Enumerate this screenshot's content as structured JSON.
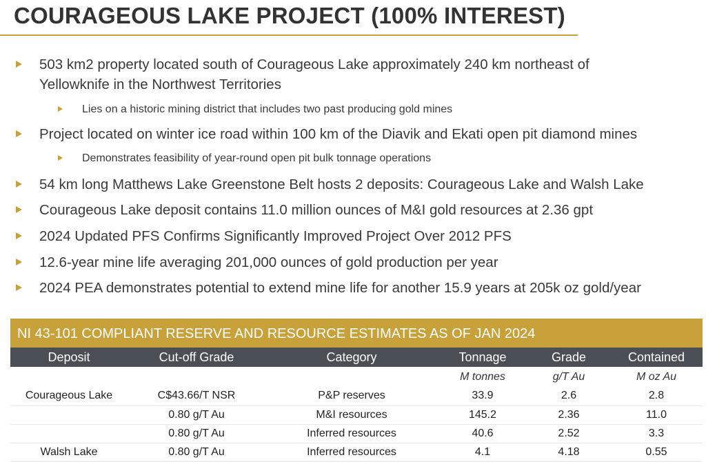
{
  "title": "COURAGEOUS LAKE PROJECT (100% INTEREST)",
  "bullets": [
    {
      "level": 1,
      "lines": [
        "503 km2 property located south of Courageous Lake approximately 240 km northeast of",
        "Yellowknife in the Northwest Territories"
      ]
    },
    {
      "level": 2,
      "lines": [
        "Lies on a historic mining district that includes two past producing gold mines"
      ]
    },
    {
      "level": 1,
      "lines": [
        "Project located on winter ice road within 100 km of the Diavik and Ekati open pit diamond mines"
      ]
    },
    {
      "level": 2,
      "lines": [
        "Demonstrates feasibility of year-round open pit bulk tonnage operations"
      ]
    },
    {
      "level": 1,
      "lines": [
        "54 km long Matthews Lake Greenstone Belt hosts 2 deposits: Courageous Lake and Walsh Lake"
      ]
    },
    {
      "level": 1,
      "lines": [
        "Courageous Lake deposit contains 11.0 million ounces of M&I gold resources at 2.36 gpt"
      ]
    },
    {
      "level": 1,
      "lines": [
        "2024 Updated PFS Confirms Significantly Improved Project Over 2012 PFS"
      ]
    },
    {
      "level": 1,
      "lines": [
        "12.6-year mine life averaging 201,000 ounces of gold production per year"
      ]
    },
    {
      "level": 1,
      "lines": [
        "2024 PEA demonstrates potential to extend mine life for another 15.9 years at 205k oz gold/year"
      ]
    }
  ],
  "table": {
    "heading": "NI 43-101 COMPLIANT RESERVE AND RESOURCE ESTIMATES AS OF JAN 2024",
    "columns": [
      "Deposit",
      "Cut-off Grade",
      "Category",
      "Tonnage",
      "Grade",
      "Contained"
    ],
    "units": [
      "",
      "",
      "",
      "M tonnes",
      "g/T Au",
      "M oz Au"
    ],
    "rows": [
      [
        "Courageous Lake",
        "C$43.66/T NSR",
        "P&P reserves",
        "33.9",
        "2.6",
        "2.8"
      ],
      [
        "",
        "0.80 g/T Au",
        "M&I resources",
        "145.2",
        "2.36",
        "11.0"
      ],
      [
        "",
        "0.80 g/T Au",
        "Inferred resources",
        "40.6",
        "2.52",
        "3.3"
      ],
      [
        "Walsh Lake",
        "0.80 g/T Au",
        "Inferred resources",
        "4.1",
        "4.18",
        "0.55"
      ]
    ]
  },
  "colors": {
    "accent": "#c9a13a",
    "header_bg": "#4a4f55",
    "text": "#3a3a3a"
  }
}
